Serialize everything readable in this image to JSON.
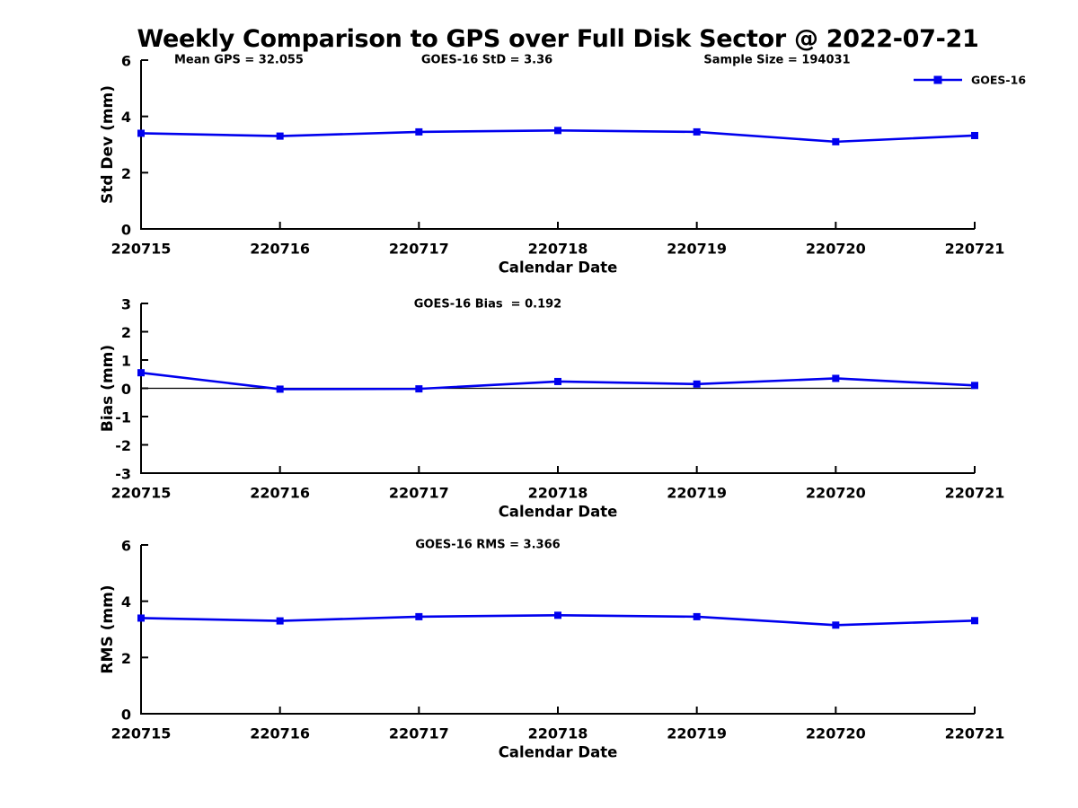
{
  "figure": {
    "title": "Weekly Comparison to GPS over Full Disk Sector @ 2022-07-21",
    "background_color": "#FFFFFF",
    "text_color": "#000000",
    "accent_color": "#0000EE"
  },
  "chart_data": [
    {
      "type": "line",
      "name": "std-dev",
      "title": "",
      "categories": [
        "220715",
        "220716",
        "220717",
        "220718",
        "220719",
        "220720",
        "220721"
      ],
      "series": [
        {
          "name": "GOES-16",
          "values": [
            3.4,
            3.3,
            3.45,
            3.5,
            3.45,
            3.1,
            3.32
          ]
        }
      ],
      "xlabel": "Calendar Date",
      "ylabel": "Std Dev (mm)",
      "ylim": [
        0,
        6
      ],
      "yticks": [
        0,
        2,
        4,
        6
      ],
      "grid": false,
      "marker": "square",
      "line_color": "#0000EE",
      "legend": {
        "label": "GOES-16",
        "position": "top-right",
        "marker": "square-on-line"
      },
      "annotations": [
        "Mean GPS = 32.055",
        "GOES-16 StD = 3.36",
        "Sample Size = 194031"
      ]
    },
    {
      "type": "line",
      "name": "bias",
      "title": "",
      "categories": [
        "220715",
        "220716",
        "220717",
        "220718",
        "220719",
        "220720",
        "220721"
      ],
      "series": [
        {
          "name": "GOES-16",
          "values": [
            0.55,
            -0.03,
            -0.02,
            0.24,
            0.15,
            0.35,
            0.1
          ]
        }
      ],
      "xlabel": "Calendar Date",
      "ylabel": "Bias (mm)",
      "ylim": [
        -3,
        3
      ],
      "yticks": [
        -3,
        -2,
        -1,
        0,
        1,
        2,
        3
      ],
      "grid": false,
      "zero_line": true,
      "marker": "square",
      "line_color": "#0000EE",
      "annotations": [
        "GOES-16 Bias  = 0.192"
      ]
    },
    {
      "type": "line",
      "name": "rms",
      "title": "",
      "categories": [
        "220715",
        "220716",
        "220717",
        "220718",
        "220719",
        "220720",
        "220721"
      ],
      "series": [
        {
          "name": "GOES-16",
          "values": [
            3.4,
            3.3,
            3.45,
            3.5,
            3.45,
            3.15,
            3.31
          ]
        }
      ],
      "xlabel": "Calendar Date",
      "ylabel": "RMS (mm)",
      "ylim": [
        0,
        6
      ],
      "yticks": [
        0,
        2,
        4,
        6
      ],
      "grid": false,
      "marker": "square",
      "line_color": "#0000EE",
      "annotations": [
        "GOES-16 RMS = 3.366"
      ]
    }
  ]
}
